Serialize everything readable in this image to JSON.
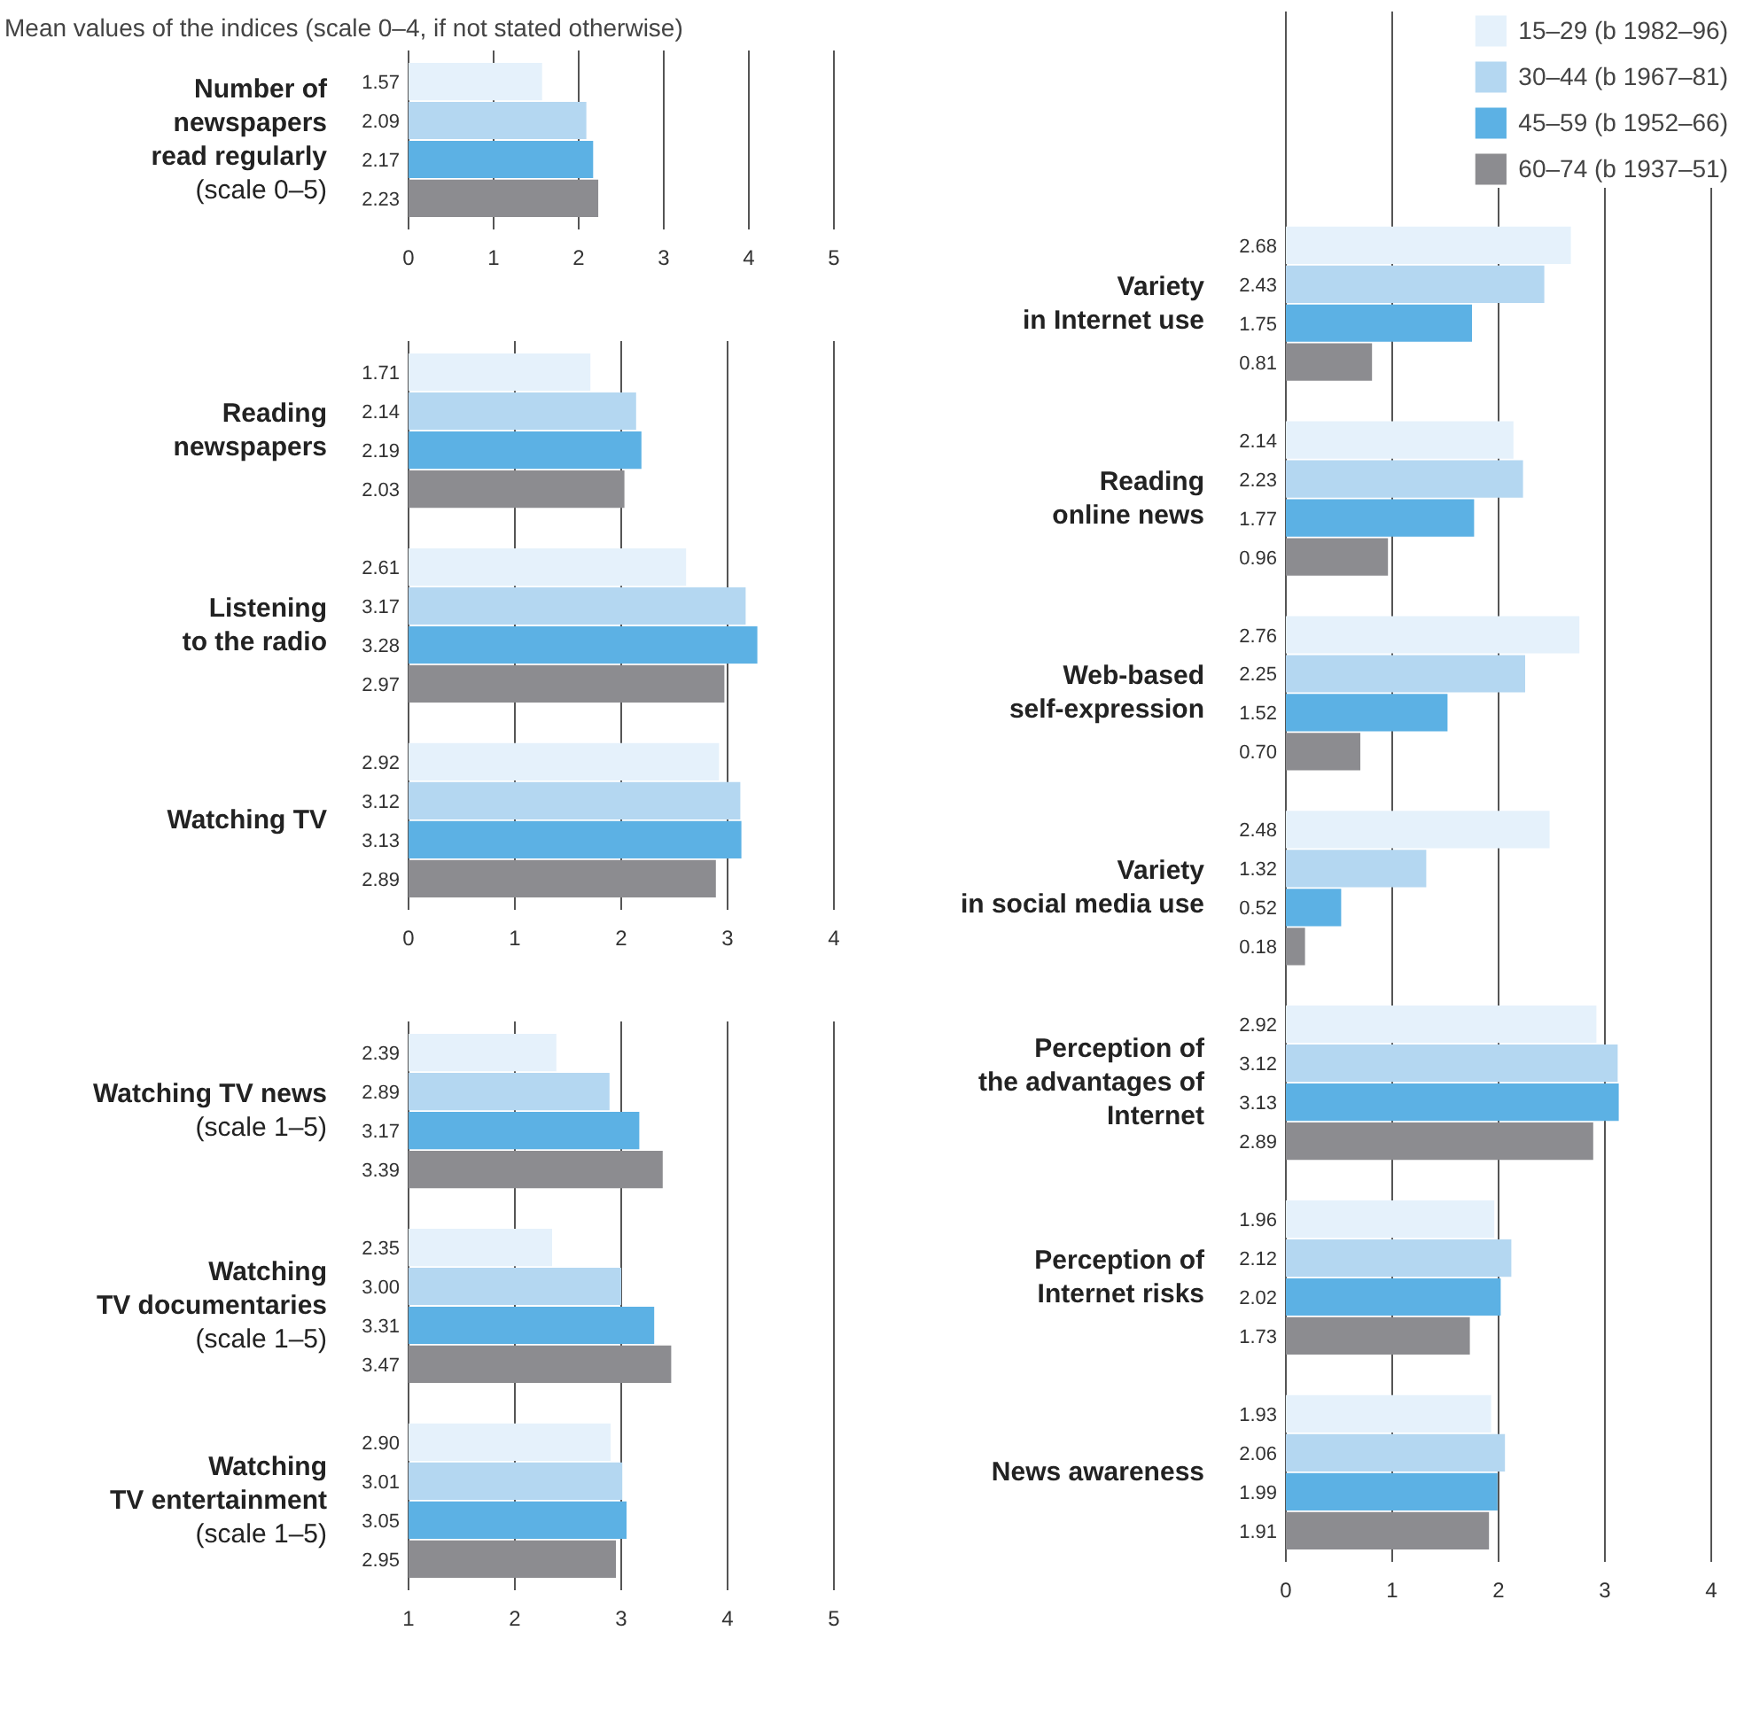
{
  "chart_data": [
    {
      "type": "bar",
      "orientation": "horizontal",
      "title": "Mean values of the indices (scale 0–4, if not stated otherwise)",
      "categories": [
        "Number of\nnewspapers\nread regularly\n(scale 0–5)"
      ],
      "series": [
        {
          "color": "#e5f1fb",
          "values": [
            1.57
          ],
          "value_labels": [
            "1.57"
          ]
        },
        {
          "color": "#b4d7f1",
          "values": [
            2.09
          ],
          "value_labels": [
            "2.09"
          ]
        },
        {
          "color": "#5cb1e4",
          "values": [
            2.17
          ],
          "value_labels": [
            "2.17"
          ]
        },
        {
          "color": "#8c8c90",
          "values": [
            2.23
          ],
          "value_labels": [
            "2.23"
          ]
        }
      ],
      "xlim": [
        0,
        5
      ],
      "xticks": [
        0,
        1,
        2,
        3,
        4,
        5
      ],
      "grid": "x",
      "data_labels": true
    },
    {
      "type": "bar",
      "orientation": "horizontal",
      "categories": [
        "Reading\nnewspapers",
        "Listening\nto the radio",
        "Watching TV"
      ],
      "series": [
        {
          "color": "#e5f1fb",
          "values": [
            1.71,
            2.61,
            2.92
          ],
          "value_labels": [
            "1.71",
            "2.61",
            "2.92"
          ]
        },
        {
          "color": "#b4d7f1",
          "values": [
            2.14,
            3.17,
            3.12
          ],
          "value_labels": [
            "2.14",
            "3.17",
            "3.12"
          ]
        },
        {
          "color": "#5cb1e4",
          "values": [
            2.19,
            3.28,
            3.13
          ],
          "value_labels": [
            "2.19",
            "3.28",
            "3.13"
          ]
        },
        {
          "color": "#8c8c90",
          "values": [
            2.03,
            2.97,
            2.89
          ],
          "value_labels": [
            "2.03",
            "2.97",
            "2.89"
          ]
        }
      ],
      "xlim": [
        0,
        4
      ],
      "xticks": [
        0,
        1,
        2,
        3,
        4
      ],
      "grid": "x",
      "data_labels": true
    },
    {
      "type": "bar",
      "orientation": "horizontal",
      "categories": [
        "Watching TV news\n(scale 1–5)",
        "Watching\nTV documentaries\n(scale 1–5)",
        "Watching\nTV entertainment\n(scale 1–5)"
      ],
      "series": [
        {
          "color": "#e5f1fb",
          "values": [
            2.39,
            2.35,
            2.9
          ],
          "value_labels": [
            "2.39",
            "2.35",
            "2.90"
          ]
        },
        {
          "color": "#b4d7f1",
          "values": [
            2.89,
            3.0,
            3.01
          ],
          "value_labels": [
            "2.89",
            "3.00",
            "3.01"
          ]
        },
        {
          "color": "#5cb1e4",
          "values": [
            3.17,
            3.31,
            3.05
          ],
          "value_labels": [
            "3.17",
            "3.31",
            "3.05"
          ]
        },
        {
          "color": "#8c8c90",
          "values": [
            3.39,
            3.47,
            2.95
          ],
          "value_labels": [
            "3.39",
            "3.47",
            "2.95"
          ]
        }
      ],
      "xlim": [
        1,
        5
      ],
      "xticks": [
        1,
        2,
        3,
        4,
        5
      ],
      "grid": "x",
      "data_labels": true
    },
    {
      "type": "bar",
      "orientation": "horizontal",
      "categories": [
        "Variety\nin Internet use",
        "Reading\nonline news",
        "Web-based\nself-expression",
        "Variety\nin social media use",
        "Perception of\nthe advantages of\nInternet",
        "Perception of\nInternet risks",
        "News awareness"
      ],
      "series": [
        {
          "name": "15–29 (b 1982–96)",
          "color": "#e5f1fb",
          "values": [
            2.68,
            2.14,
            2.76,
            2.48,
            2.92,
            1.96,
            1.93
          ],
          "value_labels": [
            "2.68",
            "2.14",
            "2.76",
            "2.48",
            "2.92",
            "1.96",
            "1.93"
          ]
        },
        {
          "name": "30–44 (b 1967–81)",
          "color": "#b4d7f1",
          "values": [
            2.43,
            2.23,
            2.25,
            1.32,
            3.12,
            2.12,
            2.06
          ],
          "value_labels": [
            "2.43",
            "2.23",
            "2.25",
            "1.32",
            "3.12",
            "2.12",
            "2.06"
          ]
        },
        {
          "name": "45–59 (b 1952–66)",
          "color": "#5cb1e4",
          "values": [
            1.75,
            1.77,
            1.52,
            0.52,
            3.13,
            2.02,
            1.99
          ],
          "value_labels": [
            "1.75",
            "1.77",
            "1.52",
            "0.52",
            "3.13",
            "2.02",
            "1.99"
          ]
        },
        {
          "name": "60–74 (b 1937–51)",
          "color": "#8c8c90",
          "values": [
            0.81,
            0.96,
            0.7,
            0.18,
            2.89,
            1.73,
            1.91
          ],
          "value_labels": [
            "0.81",
            "0.96",
            "0.70",
            "0.18",
            "2.89",
            "1.73",
            "1.91"
          ]
        }
      ],
      "xlim": [
        0,
        4
      ],
      "xticks": [
        0,
        1,
        2,
        3,
        4
      ],
      "grid": "x",
      "legend": "top right",
      "data_labels": true
    }
  ]
}
